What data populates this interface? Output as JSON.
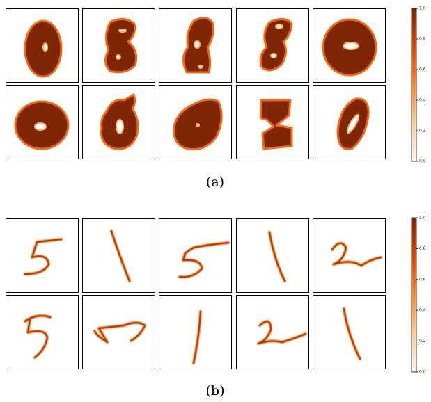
{
  "figures": [
    {
      "caption": "(a)",
      "colorbar": {
        "lim": [
          0,
          1
        ],
        "ticks": [
          {
            "value": 0,
            "label": "0.0"
          },
          0.2,
          0.4,
          0.6,
          0.8,
          {
            "value": 1,
            "label": "1.0"
          }
        ]
      }
    },
    {
      "caption": "(b)",
      "colorbar": {
        "lim": [
          0,
          1
        ],
        "ticks": [
          {
            "value": 0,
            "label": "0.0"
          },
          0.2,
          0.4,
          0.6,
          0.8,
          {
            "value": 1,
            "label": "1.0"
          }
        ]
      }
    }
  ]
}
